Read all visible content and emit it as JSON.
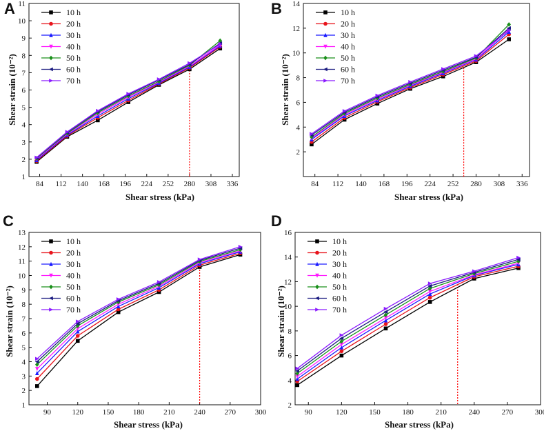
{
  "series_style": {
    "names": [
      "10 h",
      "20 h",
      "30 h",
      "40 h",
      "50 h",
      "60 h",
      "70 h"
    ],
    "colors": [
      "#000000",
      "#e8141c",
      "#1a1aff",
      "#ff1aff",
      "#1a8f1a",
      "#1a1a80",
      "#8a1aff"
    ],
    "markers": [
      "square",
      "circle",
      "triangle-up",
      "triangle-down",
      "diamond",
      "triangle-left",
      "triangle-right"
    ]
  },
  "annotation_color": "#ff0000",
  "chart_data": [
    {
      "panel": "A",
      "type": "line",
      "xlabel": "Shear stress (kPa)",
      "ylabel": "Shear strain (10⁻²)",
      "xlim": [
        70,
        345
      ],
      "ylim": [
        1,
        11
      ],
      "xticks": [
        84,
        112,
        140,
        168,
        196,
        224,
        252,
        280,
        308,
        336
      ],
      "yticks": [
        1,
        2,
        3,
        4,
        5,
        6,
        7,
        8,
        9,
        10,
        11
      ],
      "x": [
        80,
        120,
        160,
        200,
        240,
        280,
        320
      ],
      "series": [
        {
          "name": "10 h",
          "values": [
            1.85,
            3.3,
            4.25,
            5.3,
            6.3,
            7.2,
            8.4
          ]
        },
        {
          "name": "20 h",
          "values": [
            1.9,
            3.35,
            4.4,
            5.4,
            6.35,
            7.28,
            8.5
          ]
        },
        {
          "name": "30 h",
          "values": [
            1.95,
            3.4,
            4.5,
            5.5,
            6.4,
            7.33,
            8.55
          ]
        },
        {
          "name": "40 h",
          "values": [
            2.0,
            3.45,
            4.6,
            5.58,
            6.45,
            7.38,
            8.6
          ]
        },
        {
          "name": "50 h",
          "values": [
            2.05,
            3.5,
            4.68,
            5.65,
            6.5,
            7.43,
            8.85
          ]
        },
        {
          "name": "60 h",
          "values": [
            2.08,
            3.55,
            4.75,
            5.72,
            6.58,
            7.48,
            8.7
          ]
        },
        {
          "name": "70 h",
          "values": [
            2.1,
            3.58,
            4.8,
            5.78,
            6.62,
            7.55,
            8.65
          ]
        }
      ],
      "vline": {
        "x": 280,
        "y_top": 7.3
      }
    },
    {
      "panel": "B",
      "type": "line",
      "xlabel": "Shear stress (kPa)",
      "ylabel": "Shear strain (10⁻²)",
      "xlim": [
        70,
        345
      ],
      "ylim": [
        0,
        14
      ],
      "xticks": [
        84,
        112,
        140,
        168,
        196,
        224,
        252,
        280,
        308,
        336
      ],
      "yticks": [
        2,
        4,
        6,
        8,
        10,
        12,
        14
      ],
      "x": [
        80,
        120,
        160,
        200,
        240,
        280,
        320
      ],
      "series": [
        {
          "name": "10 h",
          "values": [
            2.6,
            4.6,
            5.9,
            7.1,
            8.1,
            9.25,
            11.1
          ]
        },
        {
          "name": "20 h",
          "values": [
            2.8,
            4.75,
            6.05,
            7.2,
            8.25,
            9.35,
            11.5
          ]
        },
        {
          "name": "30 h",
          "values": [
            3.0,
            4.9,
            6.15,
            7.3,
            8.35,
            9.45,
            11.7
          ]
        },
        {
          "name": "40 h",
          "values": [
            3.1,
            5.0,
            6.25,
            7.38,
            8.42,
            9.5,
            11.9
          ]
        },
        {
          "name": "50 h",
          "values": [
            3.2,
            5.1,
            6.35,
            7.45,
            8.5,
            9.58,
            12.3
          ]
        },
        {
          "name": "60 h",
          "values": [
            3.35,
            5.2,
            6.45,
            7.55,
            8.6,
            9.65,
            12.0
          ]
        },
        {
          "name": "70 h",
          "values": [
            3.45,
            5.3,
            6.55,
            7.65,
            8.7,
            9.75,
            11.8
          ]
        }
      ],
      "vline": {
        "x": 265,
        "y_top": 8.8
      }
    },
    {
      "panel": "C",
      "type": "line",
      "xlabel": "Shear stress (kPa)",
      "ylabel": "Shear strain (10⁻²)",
      "xlim": [
        72,
        300
      ],
      "ylim": [
        1,
        13
      ],
      "xticks": [
        90,
        120,
        150,
        180,
        210,
        240,
        270,
        300
      ],
      "yticks": [
        1,
        2,
        3,
        4,
        5,
        6,
        7,
        8,
        9,
        10,
        11,
        12,
        13
      ],
      "x": [
        80,
        120,
        160,
        200,
        240,
        280
      ],
      "series": [
        {
          "name": "10 h",
          "values": [
            2.3,
            5.45,
            7.45,
            8.85,
            10.6,
            11.45
          ]
        },
        {
          "name": "20 h",
          "values": [
            2.8,
            5.8,
            7.65,
            9.0,
            10.72,
            11.55
          ]
        },
        {
          "name": "30 h",
          "values": [
            3.2,
            6.1,
            7.85,
            9.15,
            10.82,
            11.65
          ]
        },
        {
          "name": "40 h",
          "values": [
            3.5,
            6.3,
            8.0,
            9.25,
            10.9,
            11.72
          ]
        },
        {
          "name": "50 h",
          "values": [
            3.8,
            6.5,
            8.15,
            9.35,
            10.98,
            11.8
          ]
        },
        {
          "name": "60 h",
          "values": [
            4.0,
            6.65,
            8.25,
            9.45,
            11.05,
            11.9
          ]
        },
        {
          "name": "70 h",
          "values": [
            4.2,
            6.8,
            8.35,
            9.55,
            11.12,
            12.0
          ]
        }
      ],
      "vline": {
        "x": 240,
        "y_top": 10.6
      }
    },
    {
      "panel": "D",
      "type": "line",
      "xlabel": "Shear stress (kPa)",
      "ylabel": "Shear strain (10⁻²)",
      "xlim": [
        78,
        300
      ],
      "ylim": [
        2,
        16
      ],
      "xticks": [
        90,
        120,
        150,
        180,
        210,
        240,
        270,
        300
      ],
      "yticks": [
        2,
        4,
        6,
        8,
        10,
        12,
        14,
        16
      ],
      "x": [
        80,
        120,
        160,
        200,
        240,
        280
      ],
      "series": [
        {
          "name": "10 h",
          "values": [
            3.6,
            6.0,
            8.2,
            10.35,
            12.25,
            13.1
          ]
        },
        {
          "name": "20 h",
          "values": [
            3.9,
            6.35,
            8.55,
            10.7,
            12.4,
            13.25
          ]
        },
        {
          "name": "30 h",
          "values": [
            4.1,
            6.65,
            8.85,
            11.0,
            12.5,
            13.4
          ]
        },
        {
          "name": "40 h",
          "values": [
            4.3,
            6.9,
            9.05,
            11.2,
            12.55,
            13.5
          ]
        },
        {
          "name": "50 h",
          "values": [
            4.55,
            7.15,
            9.3,
            11.45,
            12.65,
            13.65
          ]
        },
        {
          "name": "60 h",
          "values": [
            4.75,
            7.4,
            9.55,
            11.65,
            12.75,
            13.8
          ]
        },
        {
          "name": "70 h",
          "values": [
            4.95,
            7.65,
            9.8,
            11.85,
            12.85,
            13.95
          ]
        }
      ],
      "vline": {
        "x": 225,
        "y_top": 11.8
      }
    }
  ]
}
